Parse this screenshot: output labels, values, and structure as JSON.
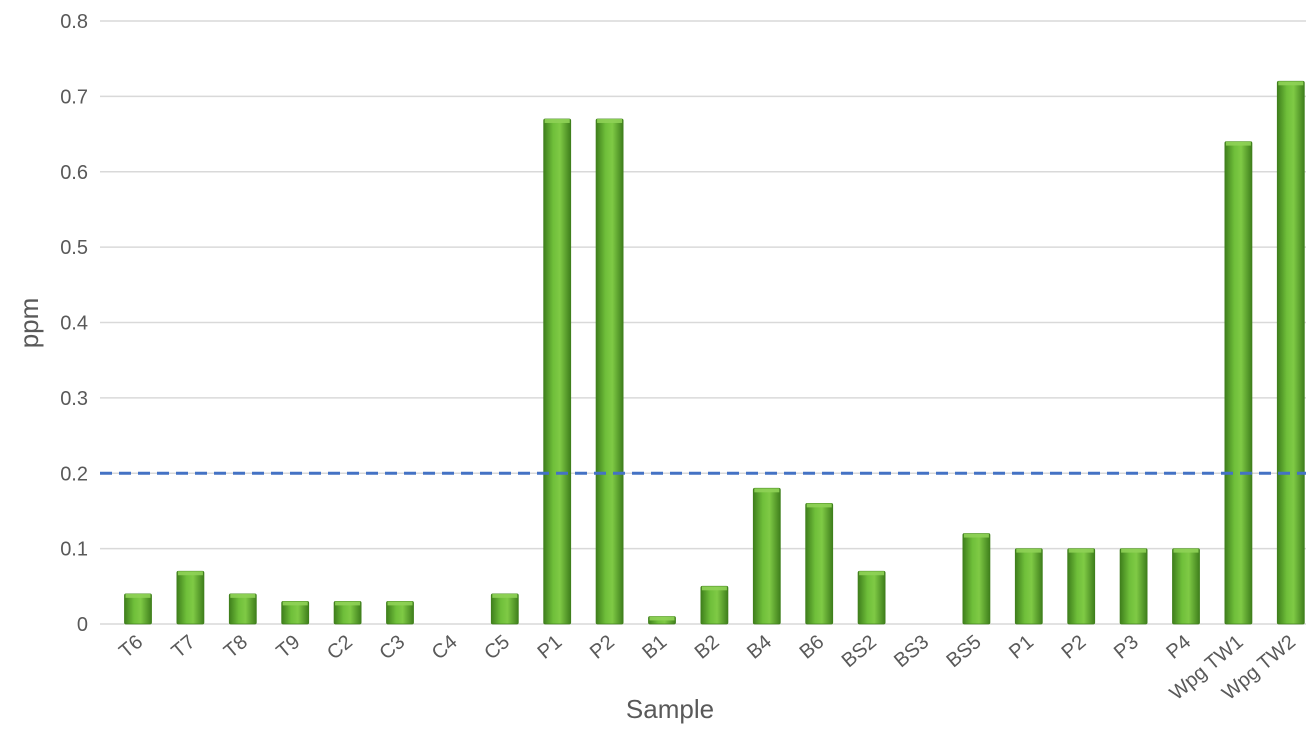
{
  "chart_data": {
    "type": "bar",
    "xlabel": "Sample",
    "ylabel": "ppm",
    "ylim": [
      0,
      0.8
    ],
    "yticks": [
      "0",
      "0.1",
      "0.2",
      "0.3",
      "0.4",
      "0.5",
      "0.6",
      "0.7",
      "0.8"
    ],
    "grid": true,
    "categories": [
      "T6",
      "T7",
      "T8",
      "T9",
      "C2",
      "C3",
      "C4",
      "C5",
      "P1",
      "P2",
      "B1",
      "B2",
      "B4",
      "B6",
      "BS2",
      "BS3",
      "BS5",
      "P1",
      "P2",
      "P3",
      "P4",
      "Wpg TW1",
      "Wpg TW2"
    ],
    "values": [
      0.04,
      0.07,
      0.04,
      0.03,
      0.03,
      0.03,
      0,
      0.04,
      0.67,
      0.67,
      0.01,
      0.05,
      0.18,
      0.16,
      0.07,
      0,
      0.12,
      0.1,
      0.1,
      0.1,
      0.1,
      0.64,
      0.72
    ],
    "reference_line": {
      "value": 0.2,
      "style": "dashed",
      "color": "#4472c4"
    },
    "colors": {
      "bar": "#5fae2e",
      "bar_dark": "#3f7f1c",
      "bar_light": "#8fd257",
      "grid": "#d9d9d9",
      "text": "#595959"
    }
  }
}
